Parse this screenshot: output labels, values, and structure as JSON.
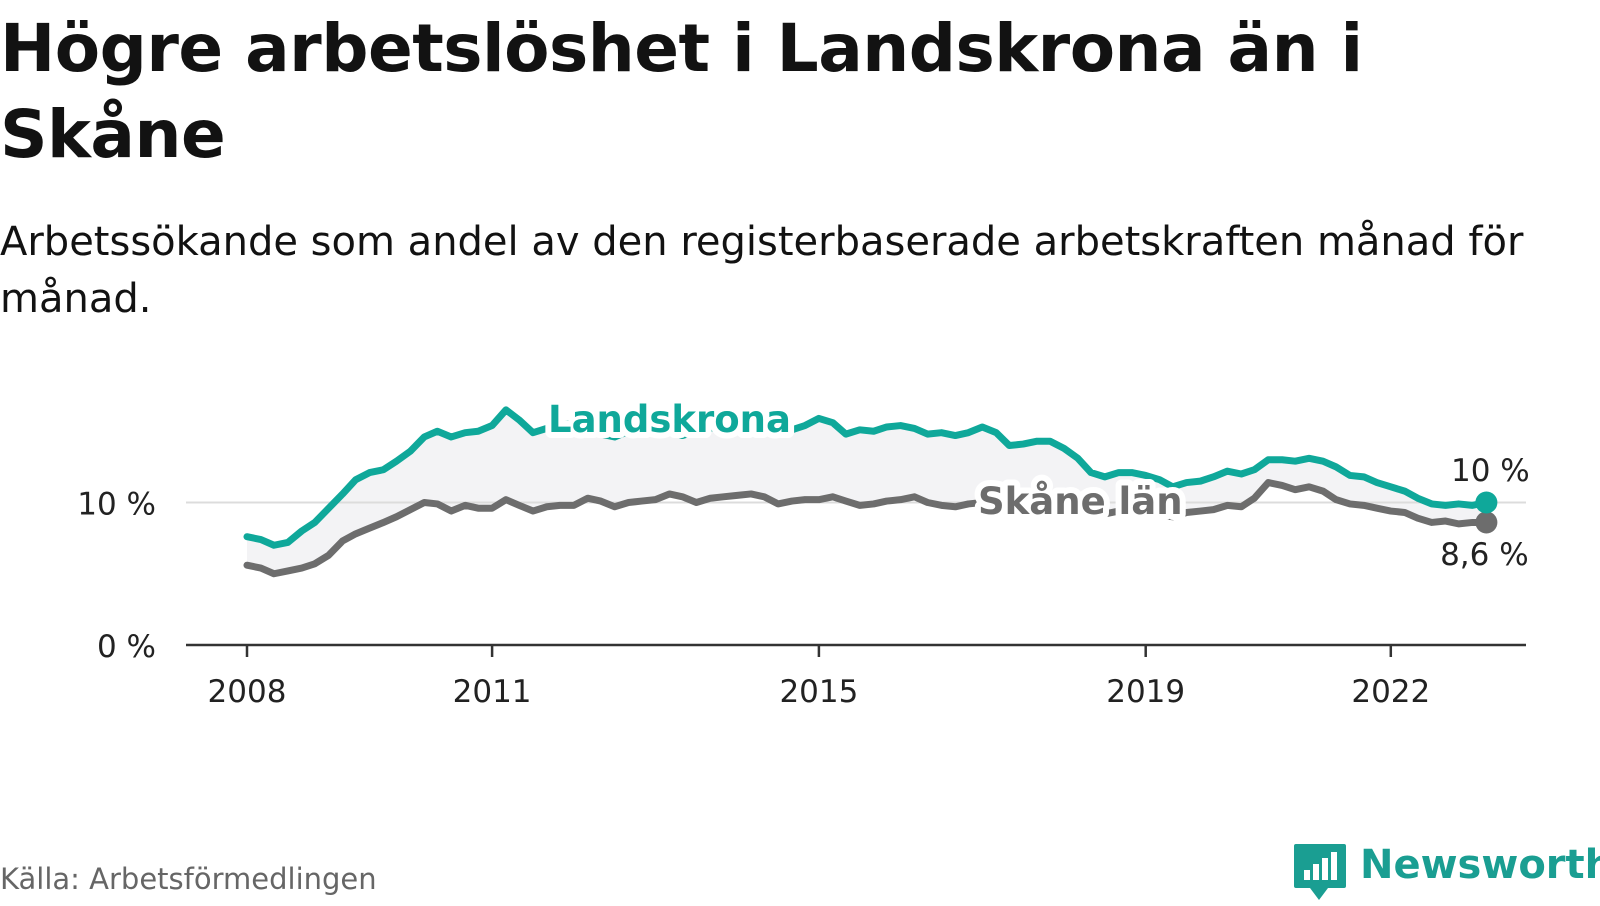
{
  "title": "Högre arbetslöshet i Landskrona än i Skåne",
  "subtitle": "Arbetssökande som andel av den registerbaserade arbetskraften månad för månad.",
  "source": "Källa: Arbetsförmedlingen",
  "brand": "Newsworthy",
  "colors": {
    "landskrona": "#0fa89a",
    "skane": "#6d6d6d",
    "band": "#f3f3f5",
    "axis": "#333333",
    "grid": "#dcdcdc",
    "brand": "#1a9e92"
  },
  "chart_data": {
    "type": "line",
    "title": "Högre arbetslöshet i Landskrona än i Skåne",
    "xlabel": "",
    "ylabel": "",
    "ylim": [
      0,
      18
    ],
    "xlim": [
      2007.6,
      2023.8
    ],
    "xticks": [
      2008,
      2011,
      2015,
      2019,
      2022
    ],
    "xtick_labels": [
      "2008",
      "2011",
      "2015",
      "2019",
      "2022"
    ],
    "yticks": [
      0,
      10
    ],
    "ytick_labels": [
      "0 %",
      "10 %"
    ],
    "series": [
      {
        "name": "Landskrona",
        "end_label": "10 %",
        "points": [
          [
            2008.0,
            7.6
          ],
          [
            2008.17,
            7.4
          ],
          [
            2008.33,
            7.0
          ],
          [
            2008.5,
            7.2
          ],
          [
            2008.67,
            8.0
          ],
          [
            2008.83,
            8.6
          ],
          [
            2009.0,
            9.6
          ],
          [
            2009.17,
            10.6
          ],
          [
            2009.33,
            11.6
          ],
          [
            2009.5,
            12.1
          ],
          [
            2009.67,
            12.3
          ],
          [
            2009.83,
            12.9
          ],
          [
            2010.0,
            13.6
          ],
          [
            2010.17,
            14.6
          ],
          [
            2010.33,
            15.0
          ],
          [
            2010.5,
            14.6
          ],
          [
            2010.67,
            14.9
          ],
          [
            2010.83,
            15.0
          ],
          [
            2011.0,
            15.4
          ],
          [
            2011.17,
            16.5
          ],
          [
            2011.33,
            15.8
          ],
          [
            2011.5,
            14.9
          ],
          [
            2011.67,
            15.2
          ],
          [
            2011.83,
            15.4
          ],
          [
            2012.0,
            15.6
          ],
          [
            2012.17,
            15.1
          ],
          [
            2012.33,
            14.8
          ],
          [
            2012.5,
            14.6
          ],
          [
            2012.67,
            15.0
          ],
          [
            2012.83,
            15.3
          ],
          [
            2013.0,
            15.5
          ],
          [
            2013.17,
            15.0
          ],
          [
            2013.33,
            14.7
          ],
          [
            2013.5,
            15.0
          ],
          [
            2013.67,
            15.2
          ],
          [
            2013.83,
            15.4
          ],
          [
            2014.0,
            15.6
          ],
          [
            2014.17,
            15.4
          ],
          [
            2014.33,
            15.1
          ],
          [
            2014.5,
            14.9
          ],
          [
            2014.67,
            15.1
          ],
          [
            2014.83,
            15.4
          ],
          [
            2015.0,
            15.9
          ],
          [
            2015.17,
            15.6
          ],
          [
            2015.33,
            14.8
          ],
          [
            2015.5,
            15.1
          ],
          [
            2015.67,
            15.0
          ],
          [
            2015.83,
            15.3
          ],
          [
            2016.0,
            15.4
          ],
          [
            2016.17,
            15.2
          ],
          [
            2016.33,
            14.8
          ],
          [
            2016.5,
            14.9
          ],
          [
            2016.67,
            14.7
          ],
          [
            2016.83,
            14.9
          ],
          [
            2017.0,
            15.3
          ],
          [
            2017.17,
            14.9
          ],
          [
            2017.33,
            14.0
          ],
          [
            2017.5,
            14.1
          ],
          [
            2017.67,
            14.3
          ],
          [
            2017.83,
            14.3
          ],
          [
            2018.0,
            13.8
          ],
          [
            2018.17,
            13.1
          ],
          [
            2018.33,
            12.1
          ],
          [
            2018.5,
            11.8
          ],
          [
            2018.67,
            12.1
          ],
          [
            2018.83,
            12.1
          ],
          [
            2019.0,
            11.9
          ],
          [
            2019.17,
            11.6
          ],
          [
            2019.33,
            11.1
          ],
          [
            2019.5,
            11.4
          ],
          [
            2019.67,
            11.5
          ],
          [
            2019.83,
            11.8
          ],
          [
            2020.0,
            12.2
          ],
          [
            2020.17,
            12.0
          ],
          [
            2020.33,
            12.3
          ],
          [
            2020.5,
            13.0
          ],
          [
            2020.67,
            13.0
          ],
          [
            2020.83,
            12.9
          ],
          [
            2021.0,
            13.1
          ],
          [
            2021.17,
            12.9
          ],
          [
            2021.33,
            12.5
          ],
          [
            2021.5,
            11.9
          ],
          [
            2021.67,
            11.8
          ],
          [
            2021.83,
            11.4
          ],
          [
            2022.0,
            11.1
          ],
          [
            2022.17,
            10.8
          ],
          [
            2022.33,
            10.3
          ],
          [
            2022.5,
            9.9
          ],
          [
            2022.67,
            9.8
          ],
          [
            2022.83,
            9.9
          ],
          [
            2023.0,
            9.8
          ],
          [
            2023.17,
            10.0
          ]
        ]
      },
      {
        "name": "Skåne län",
        "end_label": "8,6 %",
        "points": [
          [
            2008.0,
            5.6
          ],
          [
            2008.17,
            5.4
          ],
          [
            2008.33,
            5.0
          ],
          [
            2008.5,
            5.2
          ],
          [
            2008.67,
            5.4
          ],
          [
            2008.83,
            5.7
          ],
          [
            2009.0,
            6.3
          ],
          [
            2009.17,
            7.3
          ],
          [
            2009.33,
            7.8
          ],
          [
            2009.5,
            8.2
          ],
          [
            2009.67,
            8.6
          ],
          [
            2009.83,
            9.0
          ],
          [
            2010.0,
            9.5
          ],
          [
            2010.17,
            10.0
          ],
          [
            2010.33,
            9.9
          ],
          [
            2010.5,
            9.4
          ],
          [
            2010.67,
            9.8
          ],
          [
            2010.83,
            9.6
          ],
          [
            2011.0,
            9.6
          ],
          [
            2011.17,
            10.2
          ],
          [
            2011.33,
            9.8
          ],
          [
            2011.5,
            9.4
          ],
          [
            2011.67,
            9.7
          ],
          [
            2011.83,
            9.8
          ],
          [
            2012.0,
            9.8
          ],
          [
            2012.17,
            10.3
          ],
          [
            2012.33,
            10.1
          ],
          [
            2012.5,
            9.7
          ],
          [
            2012.67,
            10.0
          ],
          [
            2012.83,
            10.1
          ],
          [
            2013.0,
            10.2
          ],
          [
            2013.17,
            10.6
          ],
          [
            2013.33,
            10.4
          ],
          [
            2013.5,
            10.0
          ],
          [
            2013.67,
            10.3
          ],
          [
            2013.83,
            10.4
          ],
          [
            2014.0,
            10.5
          ],
          [
            2014.17,
            10.6
          ],
          [
            2014.33,
            10.4
          ],
          [
            2014.5,
            9.9
          ],
          [
            2014.67,
            10.1
          ],
          [
            2014.83,
            10.2
          ],
          [
            2015.0,
            10.2
          ],
          [
            2015.17,
            10.4
          ],
          [
            2015.33,
            10.1
          ],
          [
            2015.5,
            9.8
          ],
          [
            2015.67,
            9.9
          ],
          [
            2015.83,
            10.1
          ],
          [
            2016.0,
            10.2
          ],
          [
            2016.17,
            10.4
          ],
          [
            2016.33,
            10.0
          ],
          [
            2016.5,
            9.8
          ],
          [
            2016.67,
            9.7
          ],
          [
            2016.83,
            9.9
          ],
          [
            2017.0,
            10.0
          ],
          [
            2017.17,
            9.8
          ],
          [
            2017.33,
            9.6
          ],
          [
            2017.5,
            9.5
          ],
          [
            2017.67,
            9.6
          ],
          [
            2017.83,
            9.7
          ],
          [
            2018.0,
            9.6
          ],
          [
            2018.17,
            9.5
          ],
          [
            2018.33,
            9.3
          ],
          [
            2018.5,
            9.2
          ],
          [
            2018.67,
            9.4
          ],
          [
            2018.83,
            9.3
          ],
          [
            2019.0,
            9.2
          ],
          [
            2019.17,
            9.1
          ],
          [
            2019.33,
            9.0
          ],
          [
            2019.5,
            9.3
          ],
          [
            2019.67,
            9.4
          ],
          [
            2019.83,
            9.5
          ],
          [
            2020.0,
            9.8
          ],
          [
            2020.17,
            9.7
          ],
          [
            2020.33,
            10.3
          ],
          [
            2020.5,
            11.4
          ],
          [
            2020.67,
            11.2
          ],
          [
            2020.83,
            10.9
          ],
          [
            2021.0,
            11.1
          ],
          [
            2021.17,
            10.8
          ],
          [
            2021.33,
            10.2
          ],
          [
            2021.5,
            9.9
          ],
          [
            2021.67,
            9.8
          ],
          [
            2021.83,
            9.6
          ],
          [
            2022.0,
            9.4
          ],
          [
            2022.17,
            9.3
          ],
          [
            2022.33,
            8.9
          ],
          [
            2022.5,
            8.6
          ],
          [
            2022.67,
            8.7
          ],
          [
            2022.83,
            8.5
          ],
          [
            2023.0,
            8.6
          ],
          [
            2023.17,
            8.6
          ]
        ]
      }
    ]
  }
}
